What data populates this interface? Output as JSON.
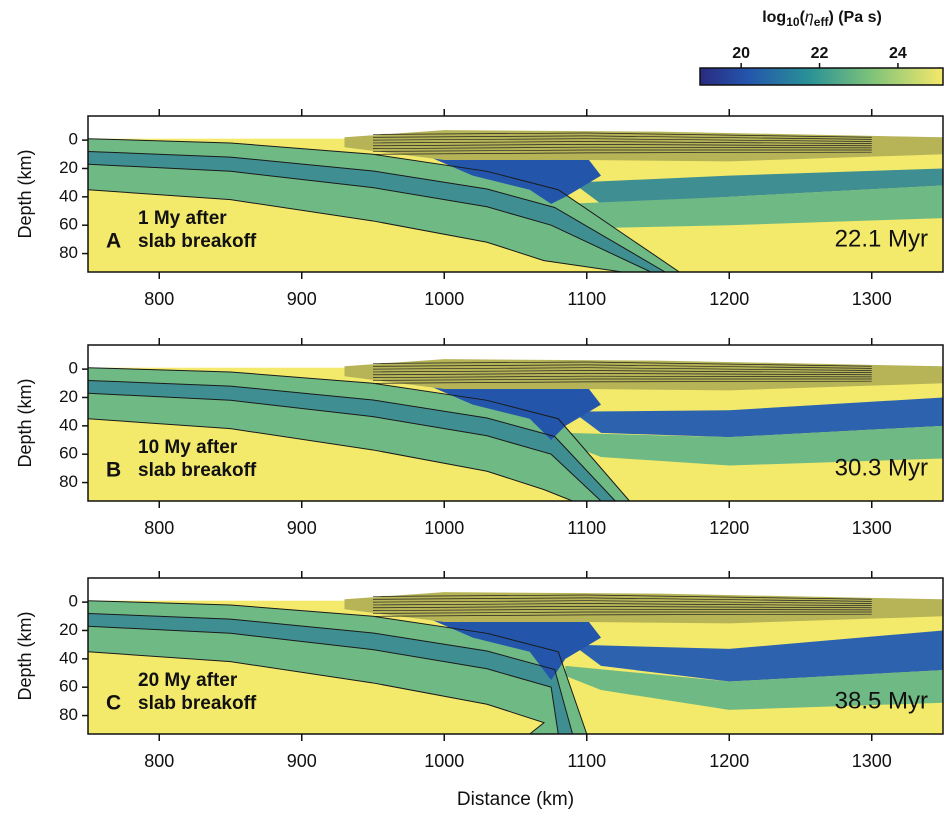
{
  "colorbar": {
    "title_parts": [
      "log",
      "10",
      "(",
      "η",
      "eff",
      ") (Pa s)"
    ],
    "lim": [
      18.95,
      25.15
    ],
    "ticks": [
      20,
      22,
      24
    ]
  },
  "chart_data": [
    {
      "type": "heatmap",
      "label": "A",
      "annotation": [
        "1 My after",
        "slab breakoff"
      ],
      "time": "22.1 Myr",
      "ylabel": "Depth (km)",
      "xlim": [
        750,
        1350
      ],
      "xticks": [
        800,
        900,
        1000,
        1100,
        1200,
        1300
      ],
      "ylim": [
        -17,
        93
      ],
      "yticks": [
        0,
        20,
        40,
        60,
        80
      ]
    },
    {
      "type": "heatmap",
      "label": "B",
      "annotation": [
        "10 My after",
        "slab breakoff"
      ],
      "time": "30.3 Myr",
      "ylabel": "Depth (km)",
      "xlim": [
        750,
        1350
      ],
      "xticks": [
        800,
        900,
        1000,
        1100,
        1200,
        1300
      ],
      "ylim": [
        -17,
        93
      ],
      "yticks": [
        0,
        20,
        40,
        60,
        80
      ]
    },
    {
      "type": "heatmap",
      "label": "C",
      "annotation": [
        "20 My after",
        "slab breakoff"
      ],
      "time": "38.5 Myr",
      "ylabel": "Depth (km)",
      "xlabel": "Distance (km)",
      "xlim": [
        750,
        1350
      ],
      "xticks": [
        800,
        900,
        1000,
        1100,
        1200,
        1300
      ],
      "ylim": [
        -17,
        93
      ],
      "yticks": [
        0,
        20,
        40,
        60,
        80
      ]
    }
  ]
}
